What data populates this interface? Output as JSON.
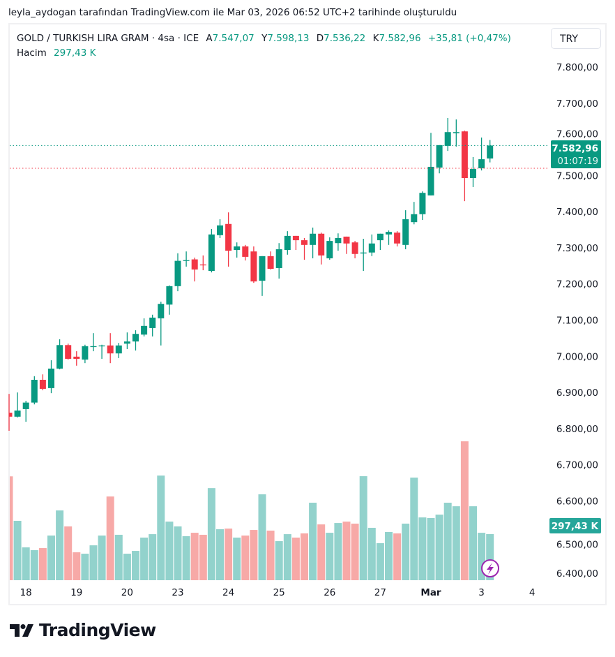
{
  "attribution": "leyla_aydogan tarafından TradingView.com ile Mar 03, 2026 06:52 UTC+2 tarihinde oluşturuldu",
  "legend": {
    "symbol": "GOLD / TURKISH LIRA GRAM · 4sa · ICE",
    "open_label": "A",
    "open": "7.547,07",
    "high_label": "Y",
    "high": "7.598,13",
    "low_label": "D",
    "low": "7.536,22",
    "close_label": "K",
    "close": "7.582,96",
    "change": "+35,81 (+0,47%)",
    "volume_label": "Hacim",
    "volume": "297,43 K"
  },
  "currency_button": "TRY",
  "last_price_badge": {
    "price": "7.582,96",
    "countdown": "01:07:19"
  },
  "volume_badge": "297,43 K",
  "logo_text": "TradingView",
  "colors": {
    "up": "#089981",
    "down": "#f23645",
    "up_vol": "#92d2cc",
    "down_vol": "#f7a9a7"
  },
  "chart_data": {
    "type": "candlestick",
    "title": "GOLD / TURKISH LIRA GRAM · 4sa · ICE",
    "ylim": [
      6400,
      7800
    ],
    "y_ticks": [
      "7.800,00",
      "7.700,00",
      "7.600,00",
      "7.500,00",
      "7.400,00",
      "7.300,00",
      "7.200,00",
      "7.100,00",
      "7.000,00",
      "6.900,00",
      "6.800,00",
      "6.700,00",
      "6.600,00",
      "6.500,00",
      "6.400,00"
    ],
    "y_tick_values": [
      7800,
      7700,
      7600,
      7500,
      7400,
      7300,
      7200,
      7100,
      7000,
      6900,
      6800,
      6700,
      6600,
      6500,
      6400
    ],
    "x_ticks": [
      {
        "label": "18",
        "index": 2
      },
      {
        "label": "19",
        "index": 8
      },
      {
        "label": "20",
        "index": 14
      },
      {
        "label": "23",
        "index": 20
      },
      {
        "label": "24",
        "index": 26
      },
      {
        "label": "25",
        "index": 32
      },
      {
        "label": "26",
        "index": 38
      },
      {
        "label": "27",
        "index": 44
      },
      {
        "label": "Mar",
        "index": 50,
        "bold": true
      },
      {
        "label": "3",
        "index": 56
      },
      {
        "label": "4",
        "index": 62
      }
    ],
    "last_price": 7582.96,
    "reference_line": 7520,
    "ohlc": [
      [
        6844,
        6896,
        6794,
        6833
      ],
      [
        6833,
        6900,
        6831,
        6850
      ],
      [
        6854,
        6877,
        6819,
        6872
      ],
      [
        6872,
        6945,
        6867,
        6935
      ],
      [
        6935,
        6950,
        6906,
        6910
      ],
      [
        6912,
        6989,
        6898,
        6966
      ],
      [
        6966,
        7047,
        6964,
        7031
      ],
      [
        7031,
        7035,
        6991,
        6993
      ],
      [
        6999,
        7014,
        6974,
        6993
      ],
      [
        6991,
        7032,
        6981,
        7028
      ],
      [
        7026,
        7064,
        7014,
        7028
      ],
      [
        7028,
        7032,
        6993,
        7030
      ],
      [
        7030,
        7064,
        6981,
        7008
      ],
      [
        7008,
        7037,
        6995,
        7030
      ],
      [
        7035,
        7066,
        7020,
        7041
      ],
      [
        7041,
        7072,
        7016,
        7062
      ],
      [
        7060,
        7105,
        7055,
        7084
      ],
      [
        7078,
        7115,
        7055,
        7107
      ],
      [
        7105,
        7151,
        7030,
        7145
      ],
      [
        7143,
        7196,
        7115,
        7194
      ],
      [
        7194,
        7285,
        7180,
        7264
      ],
      [
        7264,
        7290,
        7248,
        7266
      ],
      [
        7268,
        7273,
        7207,
        7240
      ],
      [
        7254,
        7279,
        7238,
        7252
      ],
      [
        7236,
        7352,
        7232,
        7337
      ],
      [
        7335,
        7379,
        7327,
        7362
      ],
      [
        7366,
        7398,
        7248,
        7292
      ],
      [
        7294,
        7315,
        7273,
        7304
      ],
      [
        7304,
        7308,
        7265,
        7275
      ],
      [
        7290,
        7304,
        7203,
        7207
      ],
      [
        7209,
        7277,
        7167,
        7277
      ],
      [
        7277,
        7290,
        7240,
        7242
      ],
      [
        7244,
        7313,
        7215,
        7296
      ],
      [
        7294,
        7346,
        7281,
        7333
      ],
      [
        7333,
        7333,
        7294,
        7321
      ],
      [
        7321,
        7327,
        7267,
        7308
      ],
      [
        7308,
        7356,
        7271,
        7339
      ],
      [
        7339,
        7342,
        7254,
        7279
      ],
      [
        7271,
        7329,
        7267,
        7319
      ],
      [
        7313,
        7340,
        7292,
        7327
      ],
      [
        7331,
        7331,
        7283,
        7312
      ],
      [
        7315,
        7319,
        7271,
        7283
      ],
      [
        7285,
        7325,
        7236,
        7287
      ],
      [
        7287,
        7337,
        7277,
        7312
      ],
      [
        7321,
        7339,
        7294,
        7339
      ],
      [
        7337,
        7348,
        7308,
        7344
      ],
      [
        7342,
        7346,
        7304,
        7312
      ],
      [
        7308,
        7404,
        7296,
        7379
      ],
      [
        7371,
        7427,
        7365,
        7393
      ],
      [
        7393,
        7456,
        7377,
        7452
      ],
      [
        7445,
        7618,
        7445,
        7524
      ],
      [
        7522,
        7584,
        7506,
        7584
      ],
      [
        7582,
        7659,
        7568,
        7620
      ],
      [
        7617,
        7655,
        7580,
        7620
      ],
      [
        7622,
        7624,
        7429,
        7493
      ],
      [
        7493,
        7551,
        7468,
        7518
      ],
      [
        7520,
        7605,
        7514,
        7545
      ],
      [
        7547.07,
        7598.13,
        7536.22,
        7582.96
      ]
    ],
    "volume_k": [
      670,
      383,
      212,
      194,
      207,
      288,
      450,
      347,
      180,
      171,
      225,
      288,
      540,
      293,
      171,
      189,
      275,
      297,
      675,
      378,
      347,
      284,
      306,
      293,
      594,
      329,
      333,
      275,
      288,
      324,
      554,
      320,
      252,
      297,
      275,
      302,
      500,
      360,
      306,
      369,
      378,
      365,
      671,
      338,
      239,
      311,
      302,
      365,
      662,
      405,
      401,
      423,
      500,
      477,
      896,
      477,
      306,
      297.43
    ]
  }
}
